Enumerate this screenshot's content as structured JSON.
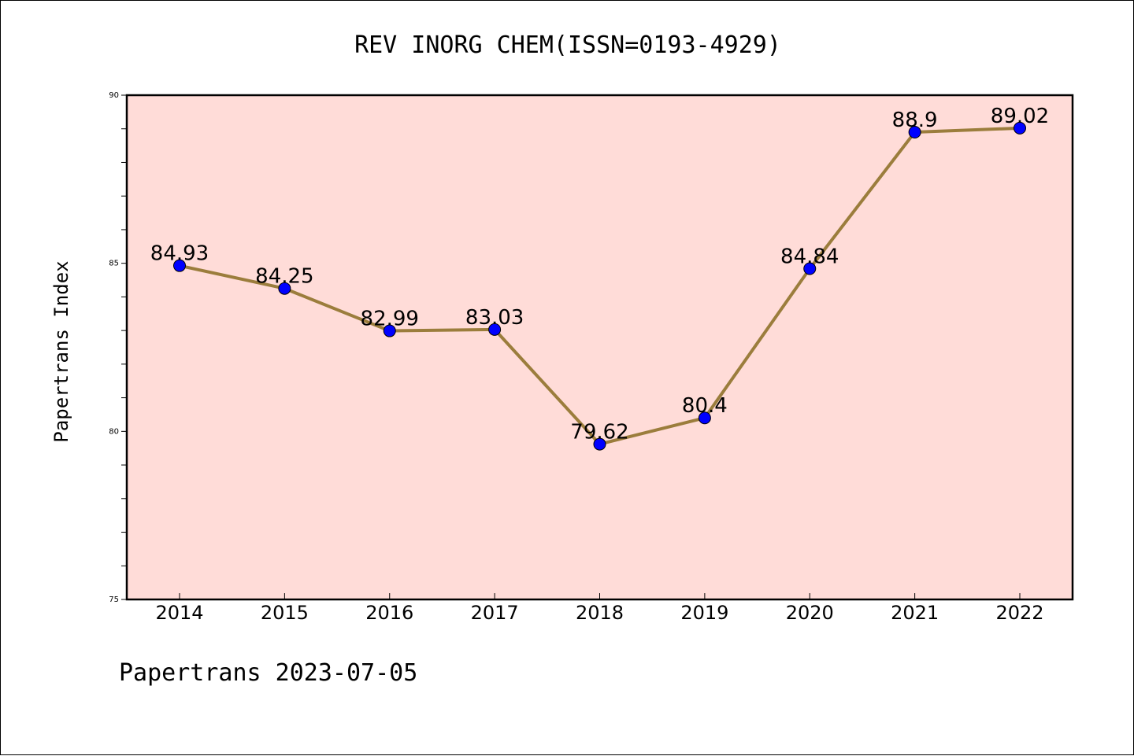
{
  "chart_data": {
    "type": "line",
    "title": "REV INORG CHEM(ISSN=0193-4929)",
    "xlabel": "",
    "ylabel": "Papertrans Index",
    "categories": [
      "2014",
      "2015",
      "2016",
      "2017",
      "2018",
      "2019",
      "2020",
      "2021",
      "2022"
    ],
    "series": [
      {
        "values": [
          84.93,
          84.25,
          82.99,
          83.03,
          79.62,
          80.4,
          84.84,
          88.9,
          89.02
        ],
        "data_labels": [
          "84.93",
          "84.25",
          "82.99",
          "83.03",
          "79.62",
          "80.4",
          "84.84",
          "88.9",
          "89.02"
        ],
        "line_color": "#9b7d3c",
        "marker_color": "#0000ff"
      }
    ],
    "ylim": [
      75,
      90
    ],
    "yticks": [
      75,
      80,
      85,
      90
    ],
    "ytick_labels": [
      "75",
      "80",
      "85",
      "90"
    ],
    "y_minor_step": 1,
    "grid": false,
    "legend": "none",
    "plot_background": "#ffdcd8",
    "footer": "Papertrans 2023-07-05"
  }
}
